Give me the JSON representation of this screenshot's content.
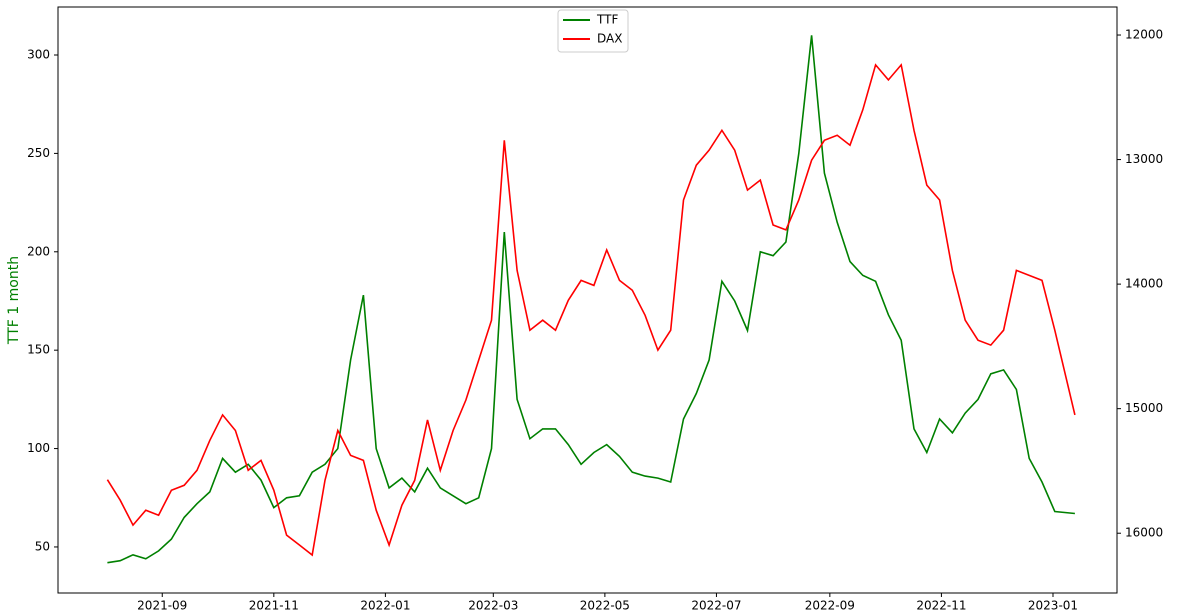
{
  "chart_data": {
    "type": "line",
    "ylabel": "TTF 1 month",
    "ylabel_color": "#008000",
    "xlim": [
      "2021-07-06",
      "2023-02-05"
    ],
    "xticks": [
      {
        "value": "2021-09-01",
        "label": "2021-09"
      },
      {
        "value": "2021-11-01",
        "label": "2021-11"
      },
      {
        "value": "2022-01-01",
        "label": "2022-01"
      },
      {
        "value": "2022-03-01",
        "label": "2022-03"
      },
      {
        "value": "2022-05-01",
        "label": "2022-05"
      },
      {
        "value": "2022-07-01",
        "label": "2022-07"
      },
      {
        "value": "2022-09-01",
        "label": "2022-09"
      },
      {
        "value": "2022-11-01",
        "label": "2022-11"
      },
      {
        "value": "2023-01-01",
        "label": "2023-01"
      }
    ],
    "ylim": [
      26.6,
      324.4
    ],
    "yticks": [
      50,
      100,
      150,
      200,
      250,
      300
    ],
    "y2lim": [
      16480,
      11775
    ],
    "y2ticks": [
      12000,
      13000,
      14000,
      15000,
      16000
    ],
    "legend": "upper center",
    "x": [
      "2021-08-02",
      "2021-08-09",
      "2021-08-16",
      "2021-08-23",
      "2021-08-30",
      "2021-09-06",
      "2021-09-13",
      "2021-09-20",
      "2021-09-27",
      "2021-10-04",
      "2021-10-11",
      "2021-10-18",
      "2021-10-25",
      "2021-11-01",
      "2021-11-08",
      "2021-11-15",
      "2021-11-22",
      "2021-11-29",
      "2021-12-06",
      "2021-12-13",
      "2021-12-20",
      "2021-12-27",
      "2022-01-03",
      "2022-01-10",
      "2022-01-17",
      "2022-01-24",
      "2022-01-31",
      "2022-02-07",
      "2022-02-14",
      "2022-02-21",
      "2022-02-28",
      "2022-03-07",
      "2022-03-14",
      "2022-03-21",
      "2022-03-28",
      "2022-04-04",
      "2022-04-11",
      "2022-04-18",
      "2022-04-25",
      "2022-05-02",
      "2022-05-09",
      "2022-05-16",
      "2022-05-23",
      "2022-05-30",
      "2022-06-06",
      "2022-06-13",
      "2022-06-20",
      "2022-06-27",
      "2022-07-04",
      "2022-07-11",
      "2022-07-18",
      "2022-07-25",
      "2022-08-01",
      "2022-08-08",
      "2022-08-15",
      "2022-08-22",
      "2022-08-29",
      "2022-09-05",
      "2022-09-12",
      "2022-09-19",
      "2022-09-26",
      "2022-10-03",
      "2022-10-10",
      "2022-10-17",
      "2022-10-24",
      "2022-10-31",
      "2022-11-07",
      "2022-11-14",
      "2022-11-21",
      "2022-11-28",
      "2022-12-05",
      "2022-12-12",
      "2022-12-19",
      "2022-12-26",
      "2023-01-02",
      "2023-01-13"
    ],
    "series": [
      {
        "name": "TTF",
        "color": "#008000",
        "axis": "y",
        "values": [
          42,
          43,
          46,
          44,
          48,
          54,
          65,
          72,
          78,
          95,
          88,
          92,
          84,
          70,
          75,
          76,
          88,
          92,
          100,
          145,
          178,
          100,
          80,
          85,
          78,
          90,
          80,
          76,
          72,
          75,
          100,
          210,
          125,
          105,
          110,
          110,
          102,
          92,
          98,
          102,
          96,
          88,
          86,
          85,
          83,
          115,
          128,
          145,
          185,
          175,
          160,
          200,
          198,
          205,
          250,
          310,
          240,
          215,
          195,
          188,
          185,
          168,
          155,
          110,
          98,
          115,
          108,
          118,
          125,
          138,
          140,
          130,
          95,
          83,
          68,
          67
        ]
      },
      {
        "name": "DAX",
        "color": "#ff0000",
        "axis": "y2",
        "values": [
          15570,
          15735,
          15935,
          15815,
          15855,
          15655,
          15615,
          15495,
          15255,
          15050,
          15175,
          15495,
          15415,
          15655,
          16015,
          16095,
          16175,
          15575,
          15175,
          15375,
          15415,
          15815,
          16095,
          15775,
          15575,
          15090,
          15495,
          15175,
          14930,
          14610,
          14290,
          12845,
          13890,
          14370,
          14290,
          14370,
          14130,
          13970,
          14010,
          13725,
          13970,
          14050,
          14250,
          14530,
          14370,
          13325,
          13045,
          12925,
          12765,
          12925,
          13245,
          13165,
          13525,
          13565,
          13325,
          13005,
          12845,
          12805,
          12885,
          12600,
          12240,
          12360,
          12240,
          12765,
          13205,
          13325,
          13890,
          14290,
          14450,
          14490,
          14370,
          13890,
          13930,
          13970,
          14370,
          15050
        ]
      }
    ]
  }
}
